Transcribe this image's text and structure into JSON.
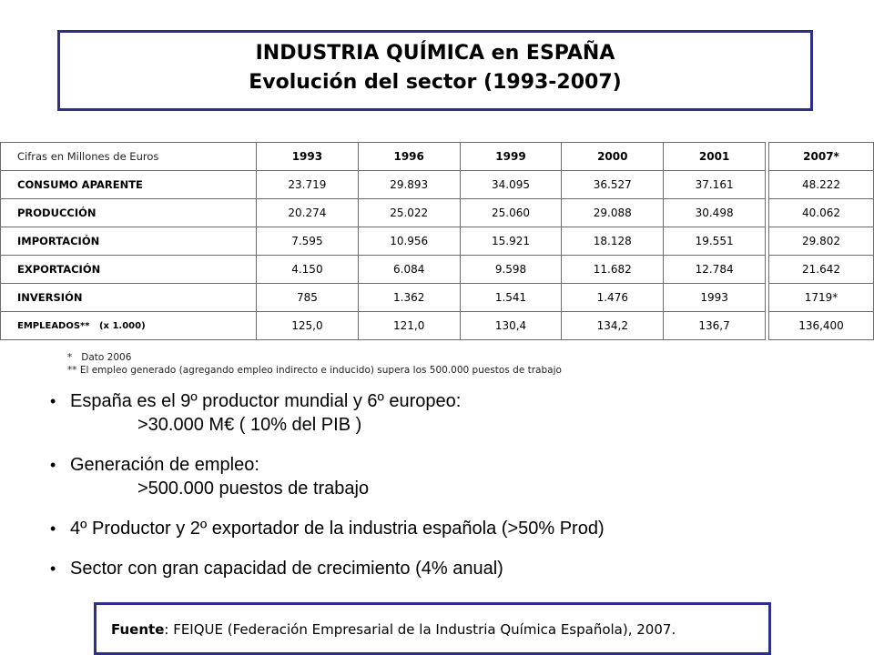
{
  "title": {
    "line1": "INDUSTRIA QUÍMICA en ESPAÑA",
    "line2": "Evolución del sector (1993-2007)"
  },
  "table": {
    "header_label": "Cifras en Millones de Euros",
    "years": [
      "1993",
      "1996",
      "1999",
      "2000",
      "2001"
    ],
    "extra_year": "2007*",
    "rows": [
      {
        "label": "CONSUMO APARENTE",
        "values": [
          "23.719",
          "29.893",
          "34.095",
          "36.527",
          "37.161"
        ],
        "extra": "48.222"
      },
      {
        "label": "PRODUCCIÓN",
        "values": [
          "20.274",
          "25.022",
          "25.060",
          "29.088",
          "30.498"
        ],
        "extra": "40.062"
      },
      {
        "label": "IMPORTACIÓN",
        "values": [
          "7.595",
          "10.956",
          "15.921",
          "18.128",
          "19.551"
        ],
        "extra": "29.802"
      },
      {
        "label": "EXPORTACIÓN",
        "values": [
          "4.150",
          "6.084",
          "9.598",
          "11.682",
          "12.784"
        ],
        "extra": "21.642"
      },
      {
        "label": "INVERSIÓN",
        "values": [
          "785",
          "1.362",
          "1.541",
          "1.476",
          "1993"
        ],
        "extra": "1719*"
      },
      {
        "label": "EMPLEADOS**   (x 1.000)",
        "values": [
          "125,0",
          "121,0",
          "130,4",
          "134,2",
          "136,7"
        ],
        "extra": "136,400"
      }
    ]
  },
  "notes": {
    "note1": "*   Dato 2006",
    "note2": "** El empleo generado (agregando empleo indirecto e inducido) supera los 500.000 puestos de trabajo"
  },
  "bullets": [
    {
      "text": "España es el 9º productor mundial y 6º europeo:",
      "sub": ">30.000 M€ ( 10% del PIB )"
    },
    {
      "text": "Generación de empleo:",
      "sub": ">500.000 puestos de trabajo"
    },
    {
      "text": "4º Productor y 2º exportador de la industria española (>50% Prod)",
      "sub": ""
    },
    {
      "text": "Sector con gran capacidad de crecimiento (4% anual)",
      "sub": ""
    }
  ],
  "source": {
    "label": "Fuente",
    "text": ": FEIQUE (Federación Empresarial de la Industria Química Española), 2007."
  }
}
